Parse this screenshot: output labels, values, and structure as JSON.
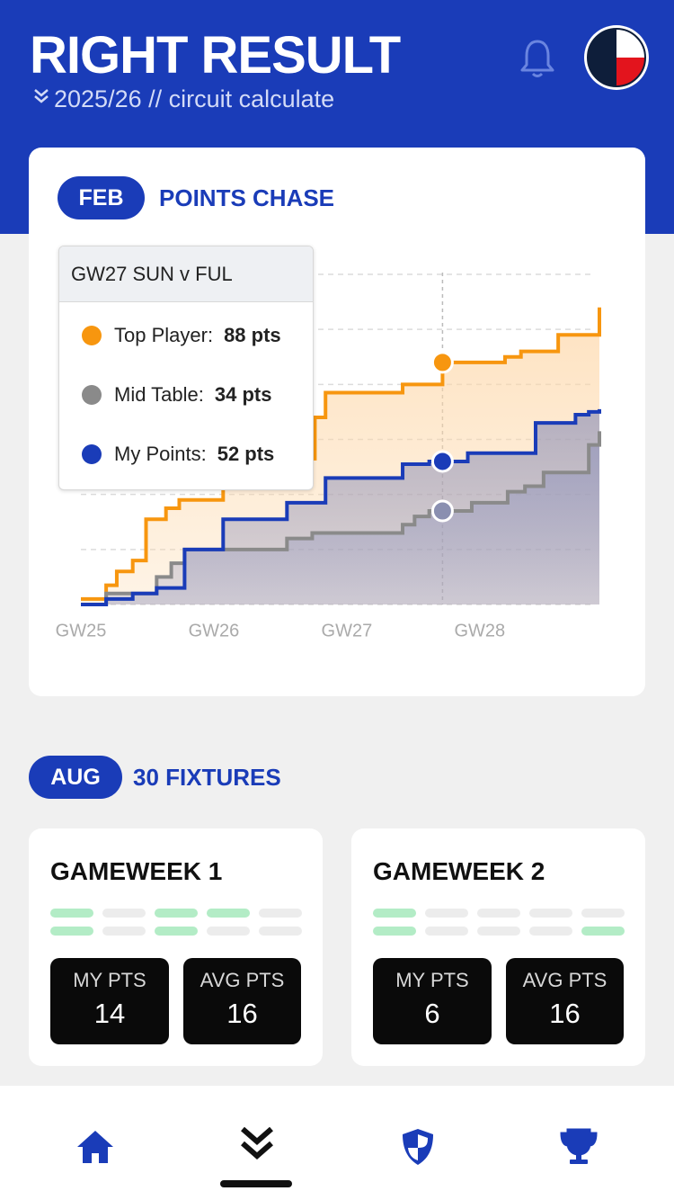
{
  "header": {
    "title": "RIGHT RESULT",
    "subtitle": "2025/26 // circuit calculate"
  },
  "chart_card": {
    "badge": "FEB",
    "heading": "POINTS CHASE"
  },
  "chart_data": {
    "type": "line",
    "step": "after",
    "xlim": [
      25,
      28.9
    ],
    "ylim": [
      0,
      120
    ],
    "xticks": [
      {
        "value": 25,
        "label": "GW25"
      },
      {
        "value": 26,
        "label": "GW26"
      },
      {
        "value": 27,
        "label": "GW27"
      },
      {
        "value": 28,
        "label": "GW28"
      }
    ],
    "yticks": [
      0,
      20,
      40,
      60,
      80,
      100,
      120
    ],
    "grid": true,
    "crosshair_x": 27.72,
    "tooltip": {
      "title": "GW27 SUN v FUL",
      "items": [
        {
          "label": "Top Player:",
          "value": "88 pts"
        },
        {
          "label": "Mid Table:",
          "value": "34 pts"
        },
        {
          "label": "My Points:",
          "value": "52 pts"
        }
      ]
    },
    "series": [
      {
        "name": "Top Player",
        "color": "#f7960f",
        "fill": "#fdd7a8",
        "x": [
          25,
          25.19,
          25.27,
          25.39,
          25.49,
          25.64,
          25.74,
          26.07,
          26.76,
          26.84,
          27.42,
          27.72,
          28.19,
          28.31,
          28.59,
          28.9
        ],
        "values": [
          2,
          7,
          12,
          16,
          31,
          35,
          38,
          53,
          68,
          77,
          80,
          88,
          90,
          92,
          98,
          108
        ]
      },
      {
        "name": "Mid Table",
        "color": "#8a8a8a",
        "fill": "#9d9fc2",
        "x": [
          25,
          25.19,
          25.57,
          25.68,
          25.78,
          26.55,
          26.74,
          27.42,
          27.51,
          27.62,
          27.94,
          28.21,
          28.34,
          28.48,
          28.82,
          28.9
        ],
        "values": [
          0,
          4,
          10,
          15,
          20,
          24,
          26,
          29,
          32,
          34,
          37,
          41,
          43,
          48,
          58,
          63
        ]
      },
      {
        "name": "My Points",
        "color": "#1a3cb8",
        "fill": "#8f92b8",
        "x": [
          25,
          25.19,
          25.39,
          25.57,
          25.78,
          26.07,
          26.55,
          26.84,
          27.42,
          27.62,
          27.91,
          28.42,
          28.72,
          28.82,
          28.9
        ],
        "values": [
          0,
          2,
          4,
          6,
          20,
          31,
          37,
          46,
          51,
          52,
          55,
          66,
          69,
          70,
          71
        ]
      }
    ]
  },
  "fixtures": {
    "badge": "AUG",
    "heading": "30 FIXTURES",
    "gameweeks": [
      {
        "title": "GAMEWEEK 1",
        "stats": [
          {
            "label": "MY PTS",
            "value": 14
          },
          {
            "label": "AVG PTS",
            "value": 16
          }
        ]
      },
      {
        "title": "GAMEWEEK 2",
        "stats": [
          {
            "label": "MY PTS",
            "value": 6
          },
          {
            "label": "AVG PTS",
            "value": 16
          }
        ]
      }
    ]
  }
}
